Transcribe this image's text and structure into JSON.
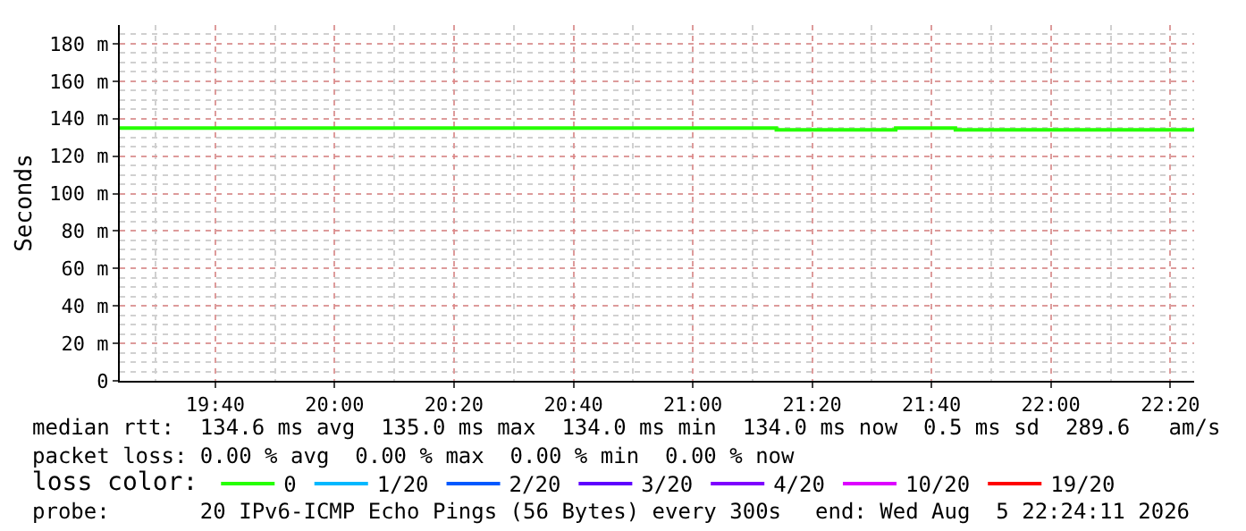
{
  "chart_data": {
    "type": "step",
    "ylabel": "Seconds",
    "legend_title": "loss color:",
    "legend": "bottom",
    "grid": true,
    "line_style": "solid",
    "marker": "none",
    "x": [
      "2026-08-05T19:24",
      "2026-08-05T21:14",
      "2026-08-05T21:34",
      "2026-08-05T21:44",
      "2026-08-05T22:24"
    ],
    "series": [
      {
        "name": "0",
        "color": "#26ff00",
        "values": [
          135,
          134,
          135,
          134,
          134
        ]
      },
      {
        "name": "1/20",
        "color": "#00b8ff",
        "values": [
          null,
          null,
          null,
          null,
          null
        ]
      },
      {
        "name": "2/20",
        "color": "#0059ff",
        "values": [
          null,
          null,
          null,
          null,
          null
        ]
      },
      {
        "name": "3/20",
        "color": "#5e00ff",
        "values": [
          null,
          null,
          null,
          null,
          null
        ]
      },
      {
        "name": "4/20",
        "color": "#7e00ff",
        "values": [
          null,
          null,
          null,
          null,
          null
        ]
      },
      {
        "name": "10/20",
        "color": "#dd00ff",
        "values": [
          null,
          null,
          null,
          null,
          null
        ]
      },
      {
        "name": "19/20",
        "color": "#ff0000",
        "values": [
          null,
          null,
          null,
          null,
          null
        ]
      }
    ],
    "xlim": [
      "2026-08-05T19:24",
      "2026-08-05T22:24"
    ],
    "xticks": [
      {
        "value": "2026-08-05T19:40",
        "label": "19:40"
      },
      {
        "value": "2026-08-05T20:00",
        "label": "20:00"
      },
      {
        "value": "2026-08-05T20:20",
        "label": "20:20"
      },
      {
        "value": "2026-08-05T20:40",
        "label": "20:40"
      },
      {
        "value": "2026-08-05T21:00",
        "label": "21:00"
      },
      {
        "value": "2026-08-05T21:20",
        "label": "21:20"
      },
      {
        "value": "2026-08-05T21:40",
        "label": "21:40"
      },
      {
        "value": "2026-08-05T22:00",
        "label": "22:00"
      },
      {
        "value": "2026-08-05T22:20",
        "label": "22:20"
      }
    ],
    "ylim": [
      0,
      190
    ],
    "yticks": [
      0,
      {
        "value": 20,
        "label": "20 m"
      },
      {
        "value": 40,
        "label": "40 m"
      },
      {
        "value": 60,
        "label": "60 m"
      },
      {
        "value": 80,
        "label": "80 m"
      },
      {
        "value": 100,
        "label": "100 m"
      },
      {
        "value": 120,
        "label": "120 m"
      },
      {
        "value": 140,
        "label": "140 m"
      },
      {
        "value": 160,
        "label": "160 m"
      },
      {
        "value": 180,
        "label": "180 m"
      }
    ],
    "annotations": [
      "median rtt:  134.6 ms avg  135.0 ms max  134.0 ms min  134.0 ms now  0.5 ms sd  289.6   am/s",
      "packet loss: 0.00 % avg  0.00 % max  0.00 % min  0.00 % now",
      "probe:       20 IPv6-ICMP Echo Pings (56 Bytes) every 300s",
      "end: Wed Aug  5 22:24:11 2026"
    ]
  }
}
